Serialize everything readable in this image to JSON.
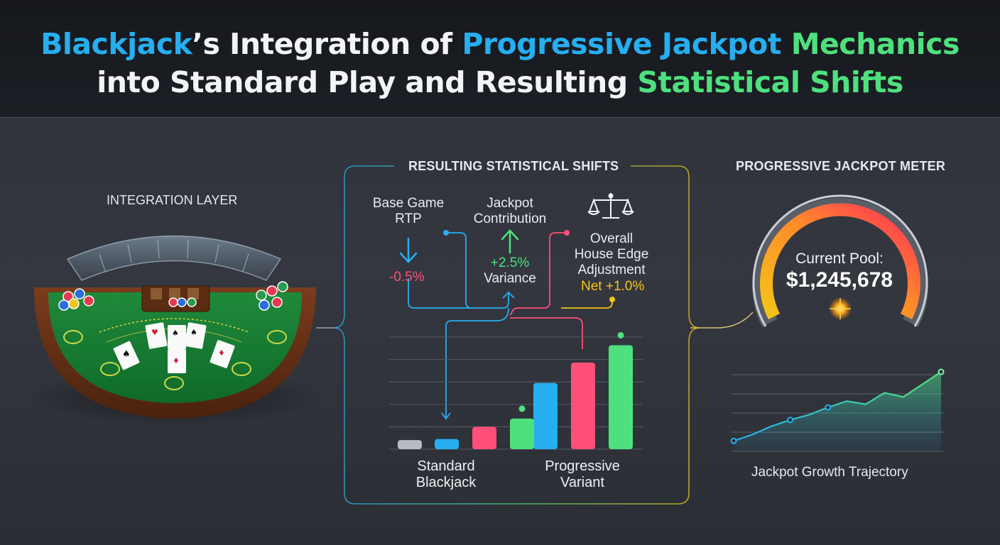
{
  "header": {
    "title_line1_a": "Blackjack",
    "title_line1_b": "’s Integration of ",
    "title_line1_c": "Progressive Jackpot",
    "title_line1_d": " Mechanics",
    "title_line2_a": "into Standard Play and Resulting ",
    "title_line2_b": "Statistical Shifts"
  },
  "integration": {
    "label": "INTEGRATION LAYER"
  },
  "stats_panel": {
    "title": "RESULTING STATISTICAL SHIFTS",
    "base_rtp": {
      "label_line1": "Base Game",
      "label_line2": "RTP",
      "value": "-0.5%",
      "color": "#ff4f7a"
    },
    "jackpot_contribution": {
      "label_line1": "Jackpot",
      "label_line2": "Contribution",
      "value_line1": "+2.5%",
      "value_line2": "Variance",
      "color": "#4fe07e"
    },
    "house_edge": {
      "label_line1": "Overall",
      "label_line2": "House Edge",
      "label_line3": "Adjustment",
      "value": "Net +1.0%",
      "color": "#f5c518"
    },
    "group_standard_line1": "Standard",
    "group_standard_line2": "Blackjack",
    "group_progressive_line1": "Progressive",
    "group_progressive_line2": "Variant"
  },
  "chart_data": {
    "type": "bar",
    "categories": [
      "Standard Blackjack",
      "Progressive Variant"
    ],
    "series": [
      {
        "values": [
          1,
          6.5
        ],
        "color": "#27aef0"
      },
      {
        "values": [
          2.2,
          8.5
        ],
        "color": "#ff4f7a"
      },
      {
        "values": [
          3,
          10.2
        ],
        "color": "#4fe07e"
      }
    ],
    "baseline_value": 0.9,
    "ylim": [
      0,
      11
    ],
    "grid": true
  },
  "meter": {
    "title": "PROGRESSIVE JACKPOT METER",
    "pool_label": "Current Pool:",
    "pool_value": "$1,245,678"
  },
  "growth": {
    "label": "Jackpot Growth Trajectory",
    "points": [
      1,
      1.6,
      2.4,
      3,
      3.5,
      4.2,
      4.8,
      4.5,
      5.6,
      5.2,
      6.4,
      7.6
    ]
  }
}
